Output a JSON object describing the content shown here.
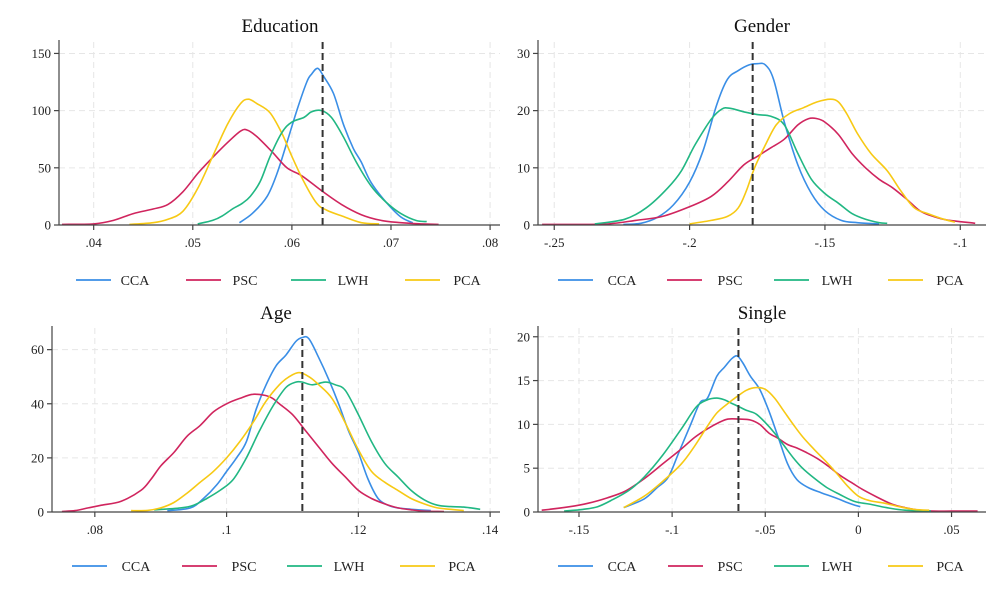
{
  "colors": {
    "CCA": "#3a8ee6",
    "PSC": "#d0255e",
    "LWH": "#21b783",
    "PCA": "#f7c914"
  },
  "legend": [
    "CCA",
    "PSC",
    "LWH",
    "PCA"
  ],
  "chart_data": [
    {
      "type": "line",
      "title": "Education",
      "xlabel": "",
      "ylabel": "",
      "xlim": [
        0.0365,
        0.081
      ],
      "ylim": [
        0,
        160
      ],
      "xticks": [
        0.04,
        0.05,
        0.06,
        0.07,
        0.08
      ],
      "xtick_labels": [
        ".04",
        ".05",
        ".06",
        ".07",
        ".08"
      ],
      "yticks": [
        0,
        50,
        100,
        150
      ],
      "ytick_labels": [
        "0",
        "50",
        "100",
        "150"
      ],
      "grid": true,
      "legend_position": "bottom",
      "reference_line_x": 0.0631,
      "series": [
        {
          "name": "CCA",
          "x": [
            0.0547,
            0.056,
            0.0575,
            0.0585,
            0.0595,
            0.0605,
            0.0615,
            0.062,
            0.0626,
            0.0632,
            0.0642,
            0.0652,
            0.0662,
            0.067,
            0.068,
            0.0695,
            0.071,
            0.0722
          ],
          "y": [
            2,
            10,
            25,
            45,
            72,
            100,
            125,
            132,
            137,
            130,
            115,
            88,
            67,
            55,
            37,
            20,
            7,
            2
          ]
        },
        {
          "name": "PSC",
          "x": [
            0.0368,
            0.04,
            0.042,
            0.044,
            0.046,
            0.0475,
            0.049,
            0.0505,
            0.052,
            0.0535,
            0.0548,
            0.0555,
            0.0565,
            0.058,
            0.0595,
            0.061,
            0.063,
            0.065,
            0.067,
            0.069,
            0.071,
            0.073,
            0.0748
          ],
          "y": [
            0.5,
            1,
            4,
            10,
            14,
            18,
            29,
            45,
            59,
            72,
            82,
            83,
            77,
            64,
            50,
            43,
            30,
            18,
            9,
            4,
            2,
            1,
            0.5
          ]
        },
        {
          "name": "PCA",
          "x": [
            0.0436,
            0.046,
            0.0475,
            0.049,
            0.0505,
            0.052,
            0.0535,
            0.0548,
            0.0556,
            0.0565,
            0.0578,
            0.059,
            0.06,
            0.0612,
            0.0625,
            0.0635,
            0.065,
            0.067,
            0.0688
          ],
          "y": [
            0.5,
            2,
            5,
            12,
            32,
            60,
            88,
            106,
            110,
            106,
            98,
            80,
            60,
            38,
            19,
            13,
            8,
            2,
            1
          ]
        },
        {
          "name": "LWH",
          "x": [
            0.0505,
            0.052,
            0.053,
            0.054,
            0.055,
            0.0558,
            0.0568,
            0.0578,
            0.059,
            0.06,
            0.0612,
            0.062,
            0.063,
            0.064,
            0.0652,
            0.0665,
            0.068,
            0.0695,
            0.071,
            0.0725,
            0.0736
          ],
          "y": [
            1,
            4,
            8,
            14,
            19,
            25,
            38,
            60,
            81,
            90,
            94,
            99,
            100,
            94,
            77,
            55,
            34,
            20,
            10,
            4,
            3
          ]
        }
      ]
    },
    {
      "type": "line",
      "title": "Gender",
      "xlabel": "",
      "ylabel": "",
      "xlim": [
        -0.256,
        -0.0905
      ],
      "ylim": [
        0,
        32
      ],
      "xticks": [
        -0.25,
        -0.2,
        -0.15,
        -0.1
      ],
      "xtick_labels": [
        "-.25",
        "-.2",
        "-.15",
        "-.1"
      ],
      "yticks": [
        0,
        10,
        20,
        30
      ],
      "ytick_labels": [
        "0",
        "10",
        "20",
        "30"
      ],
      "grid": true,
      "legend_position": "bottom",
      "reference_line_x": -0.1767,
      "series": [
        {
          "name": "CCA",
          "x": [
            -0.2245,
            -0.218,
            -0.212,
            -0.206,
            -0.2,
            -0.195,
            -0.19,
            -0.186,
            -0.182,
            -0.178,
            -0.175,
            -0.172,
            -0.169,
            -0.165,
            -0.16,
            -0.155,
            -0.15,
            -0.144,
            -0.138,
            -0.13
          ],
          "y": [
            0.1,
            0.3,
            1.3,
            3.5,
            7.5,
            13,
            21,
            25.5,
            27,
            28,
            28.2,
            28,
            25.5,
            18,
            10.5,
            5.5,
            2.5,
            0.8,
            0.4,
            0.2
          ]
        },
        {
          "name": "PSC",
          "x": [
            -0.2545,
            -0.24,
            -0.23,
            -0.22,
            -0.21,
            -0.2,
            -0.192,
            -0.186,
            -0.18,
            -0.175,
            -0.17,
            -0.165,
            -0.16,
            -0.156,
            -0.153,
            -0.15,
            -0.145,
            -0.14,
            -0.135,
            -0.13,
            -0.125,
            -0.12,
            -0.115,
            -0.11,
            -0.105,
            -0.0945
          ],
          "y": [
            0.1,
            0.1,
            0.2,
            0.8,
            1.5,
            3.2,
            5,
            7.5,
            10.5,
            12,
            13.5,
            15,
            17.5,
            18.6,
            18.6,
            18,
            15.8,
            12.5,
            10,
            8,
            6.5,
            4.6,
            2.5,
            1.5,
            0.9,
            0.3
          ]
        },
        {
          "name": "LWH",
          "x": [
            -0.235,
            -0.224,
            -0.216,
            -0.208,
            -0.203,
            -0.198,
            -0.192,
            -0.188,
            -0.185,
            -0.18,
            -0.175,
            -0.17,
            -0.165,
            -0.16,
            -0.155,
            -0.15,
            -0.145,
            -0.14,
            -0.135,
            -0.13,
            -0.127
          ],
          "y": [
            0.2,
            1,
            3,
            6.5,
            9.5,
            14,
            18.5,
            20.3,
            20.4,
            19.8,
            19.3,
            19,
            17.5,
            12.5,
            8,
            5.5,
            3.8,
            2,
            1,
            0.4,
            0.3
          ]
        },
        {
          "name": "PCA",
          "x": [
            -0.2,
            -0.192,
            -0.186,
            -0.182,
            -0.179,
            -0.176,
            -0.172,
            -0.168,
            -0.163,
            -0.158,
            -0.153,
            -0.148,
            -0.145,
            -0.142,
            -0.138,
            -0.133,
            -0.127,
            -0.122,
            -0.117,
            -0.112,
            -0.106,
            -0.102
          ],
          "y": [
            0.2,
            0.8,
            1.5,
            3,
            6,
            10,
            14,
            17.5,
            19.5,
            20.5,
            21.5,
            22,
            21.5,
            19.5,
            16,
            12.5,
            9.5,
            6,
            3,
            2,
            1,
            0.5
          ]
        }
      ]
    },
    {
      "type": "line",
      "title": "Age",
      "xlabel": "",
      "ylabel": "",
      "xlim": [
        0.0735,
        0.1415
      ],
      "ylim": [
        0,
        68
      ],
      "xticks": [
        0.08,
        0.1,
        0.12,
        0.14
      ],
      "xtick_labels": [
        ".08",
        ".1",
        ".12",
        ".14"
      ],
      "yticks": [
        0,
        20,
        40,
        60
      ],
      "ytick_labels": [
        "0",
        "20",
        "40",
        "60"
      ],
      "grid": true,
      "legend_position": "bottom",
      "reference_line_x": 0.1115,
      "series": [
        {
          "name": "CCA",
          "x": [
            0.091,
            0.0945,
            0.0965,
            0.0985,
            0.1,
            0.1015,
            0.103,
            0.1045,
            0.106,
            0.1075,
            0.109,
            0.1105,
            0.1115,
            0.1125,
            0.114,
            0.1155,
            0.117,
            0.1185,
            0.12,
            0.1215,
            0.123,
            0.1245,
            0.126,
            0.128,
            0.131
          ],
          "y": [
            0.5,
            1.5,
            5,
            10,
            15,
            20,
            26,
            38,
            47,
            54,
            58,
            63,
            64.5,
            64,
            57,
            49,
            40,
            30,
            22,
            12,
            5,
            2.5,
            1.5,
            1,
            0.5
          ]
        },
        {
          "name": "PSC",
          "x": [
            0.075,
            0.077,
            0.079,
            0.081,
            0.084,
            0.087,
            0.0885,
            0.09,
            0.092,
            0.094,
            0.096,
            0.098,
            0.1,
            0.102,
            0.104,
            0.106,
            0.107,
            0.108,
            0.11,
            0.112,
            0.114,
            0.116,
            0.118,
            0.12,
            0.122,
            0.124,
            0.126,
            0.128,
            0.13,
            0.133
          ],
          "y": [
            0.2,
            0.5,
            1.5,
            2.5,
            4,
            8,
            12,
            17,
            22,
            28,
            32,
            37,
            40,
            42,
            43.5,
            43,
            42,
            40,
            36,
            30,
            24,
            18,
            13,
            8,
            5,
            3,
            1.5,
            0.8,
            0.3,
            0.2
          ]
        },
        {
          "name": "LWH",
          "x": [
            0.089,
            0.093,
            0.095,
            0.097,
            0.099,
            0.101,
            0.103,
            0.105,
            0.107,
            0.109,
            0.1105,
            0.1115,
            0.113,
            0.115,
            0.1165,
            0.118,
            0.12,
            0.122,
            0.124,
            0.126,
            0.128,
            0.13,
            0.132,
            0.134,
            0.136,
            0.1385
          ],
          "y": [
            0.8,
            1.5,
            2.5,
            5,
            8,
            12,
            20,
            30,
            39,
            46,
            48,
            48,
            47,
            48,
            47,
            45,
            36,
            26,
            18,
            13,
            8,
            4.5,
            2.5,
            2,
            1.8,
            1
          ]
        },
        {
          "name": "PCA",
          "x": [
            0.0855,
            0.088,
            0.09,
            0.092,
            0.094,
            0.096,
            0.098,
            0.1,
            0.102,
            0.104,
            0.106,
            0.108,
            0.1095,
            0.111,
            0.1125,
            0.114,
            0.116,
            0.118,
            0.12,
            0.122,
            0.124,
            0.126,
            0.128,
            0.13,
            0.132,
            0.134,
            0.136
          ],
          "y": [
            0.5,
            0.6,
            1.5,
            3.5,
            7,
            11,
            15,
            20,
            26,
            33,
            41,
            47,
            50,
            51.5,
            50,
            47,
            42,
            33,
            23,
            15,
            11,
            8,
            5,
            3,
            1.5,
            1,
            0.5
          ]
        }
      ]
    },
    {
      "type": "line",
      "title": "Single",
      "xlabel": "",
      "ylabel": "",
      "xlim": [
        -0.172,
        0.0685
      ],
      "ylim": [
        0,
        21
      ],
      "xticks": [
        -0.15,
        -0.1,
        -0.05,
        0,
        0.05
      ],
      "xtick_labels": [
        "-.15",
        "-.1",
        "-.05",
        "0",
        ".05"
      ],
      "yticks": [
        0,
        5,
        10,
        15,
        20
      ],
      "ytick_labels": [
        "0",
        "5",
        "10",
        "15",
        "20"
      ],
      "grid": true,
      "legend_position": "bottom",
      "reference_line_x": -0.0644,
      "series": [
        {
          "name": "CCA",
          "x": [
            -0.126,
            -0.115,
            -0.108,
            -0.102,
            -0.096,
            -0.09,
            -0.085,
            -0.081,
            -0.076,
            -0.072,
            -0.068,
            -0.065,
            -0.062,
            -0.058,
            -0.053,
            -0.048,
            -0.043,
            -0.038,
            -0.033,
            -0.027,
            -0.02,
            -0.012,
            -0.005,
            0.001
          ],
          "y": [
            0.5,
            1.5,
            2.8,
            4,
            7,
            10,
            12.5,
            13,
            15.5,
            16.5,
            17.5,
            17.8,
            17,
            15.5,
            14,
            11.5,
            8.5,
            5.5,
            3.7,
            2.8,
            2.2,
            1.6,
            1,
            0.6
          ]
        },
        {
          "name": "PSC",
          "x": [
            -0.17,
            -0.155,
            -0.145,
            -0.135,
            -0.125,
            -0.115,
            -0.105,
            -0.095,
            -0.088,
            -0.081,
            -0.075,
            -0.07,
            -0.064,
            -0.058,
            -0.053,
            -0.048,
            -0.043,
            -0.038,
            -0.033,
            -0.028,
            -0.022,
            -0.016,
            -0.01,
            -0.004,
            0.002,
            0.01,
            0.018,
            0.025,
            0.033,
            0.04,
            0.05,
            0.064
          ],
          "y": [
            0.2,
            0.6,
            1,
            1.6,
            2.4,
            3.8,
            5.5,
            7.2,
            8.5,
            9.5,
            10.2,
            10.6,
            10.6,
            10.5,
            10,
            9,
            8.4,
            7.7,
            7.3,
            6.8,
            6.1,
            5.2,
            4.2,
            3.4,
            2.6,
            1.7,
            0.9,
            0.5,
            0.2,
            0.1,
            0.1,
            0.1
          ]
        },
        {
          "name": "LWH",
          "x": [
            -0.158,
            -0.148,
            -0.14,
            -0.132,
            -0.123,
            -0.115,
            -0.105,
            -0.095,
            -0.087,
            -0.081,
            -0.076,
            -0.072,
            -0.068,
            -0.064,
            -0.06,
            -0.055,
            -0.05,
            -0.045,
            -0.04,
            -0.035,
            -0.03,
            -0.024,
            -0.017,
            -0.01,
            -0.002,
            0.006,
            0.015,
            0.025,
            0.039
          ],
          "y": [
            0.1,
            0.3,
            0.6,
            1.4,
            2.5,
            4,
            6.5,
            9.5,
            12,
            12.8,
            13,
            12.8,
            12.4,
            12,
            11.6,
            11.2,
            10.2,
            9,
            7.6,
            6.2,
            5,
            3.9,
            2.8,
            2,
            1.2,
            0.9,
            0.5,
            0.2,
            0.1
          ]
        },
        {
          "name": "PCA",
          "x": [
            -0.126,
            -0.115,
            -0.105,
            -0.095,
            -0.088,
            -0.081,
            -0.076,
            -0.07,
            -0.065,
            -0.06,
            -0.055,
            -0.05,
            -0.045,
            -0.04,
            -0.035,
            -0.03,
            -0.024,
            -0.018,
            -0.012,
            -0.006,
            0.0,
            0.006,
            0.014,
            0.022,
            0.03,
            0.038
          ],
          "y": [
            0.5,
            1.8,
            3.5,
            5.5,
            7.5,
            9.8,
            11.3,
            12.4,
            13.2,
            13.9,
            14.2,
            14,
            13,
            11.5,
            10,
            8.6,
            7.2,
            5.9,
            4.5,
            3,
            1.8,
            1.3,
            1,
            0.6,
            0.3,
            0.2
          ]
        }
      ]
    }
  ]
}
